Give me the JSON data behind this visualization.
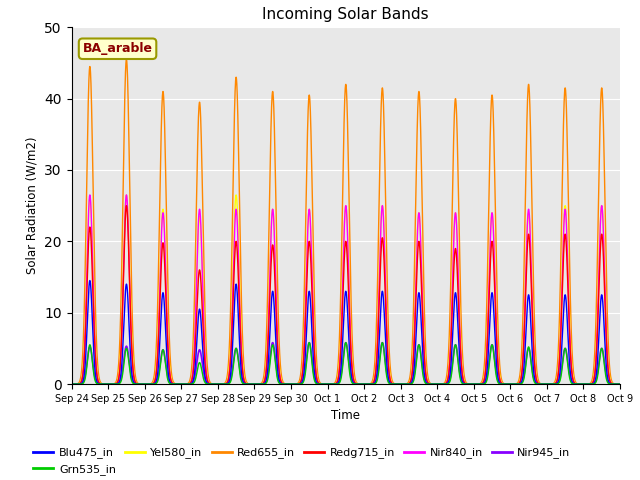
{
  "title": "Incoming Solar Bands",
  "xlabel": "Time",
  "ylabel": "Solar Radiation (W/m2)",
  "ylim": [
    0,
    50
  ],
  "annotation_text": "BA_arable",
  "bg_color": "#e8e8e8",
  "legend_entries": [
    {
      "label": "Blu475_in",
      "color": "#0000ff"
    },
    {
      "label": "Grn535_in",
      "color": "#00cc00"
    },
    {
      "label": "Yel580_in",
      "color": "#ffff00"
    },
    {
      "label": "Red655_in",
      "color": "#ff8800"
    },
    {
      "label": "Redg715_in",
      "color": "#ff0000"
    },
    {
      "label": "Nir840_in",
      "color": "#ff00ff"
    },
    {
      "label": "Nir945_in",
      "color": "#8800ff"
    }
  ],
  "n_days": 15,
  "peaks_blu": [
    14.5,
    14.0,
    12.8,
    10.5,
    14.0,
    13.0,
    13.0,
    13.0,
    13.0,
    12.8,
    12.8,
    12.8,
    12.5,
    12.5,
    12.5
  ],
  "peaks_grn": [
    5.5,
    5.0,
    4.8,
    3.0,
    5.0,
    5.5,
    5.8,
    5.8,
    5.8,
    5.5,
    5.5,
    5.5,
    5.2,
    5.0,
    5.0
  ],
  "peaks_yel": [
    26.0,
    26.5,
    24.5,
    23.5,
    26.5,
    24.5,
    24.5,
    25.0,
    25.0,
    24.0,
    24.0,
    24.0,
    24.0,
    25.0,
    25.0
  ],
  "peaks_red": [
    44.5,
    45.5,
    41.0,
    39.5,
    43.0,
    41.0,
    40.5,
    42.0,
    41.5,
    41.0,
    40.0,
    40.5,
    42.0,
    41.5,
    41.5
  ],
  "peaks_redg": [
    22.0,
    25.0,
    19.8,
    16.0,
    20.0,
    19.5,
    20.0,
    20.0,
    20.5,
    20.0,
    19.0,
    20.0,
    21.0,
    21.0,
    21.0
  ],
  "peaks_nir840": [
    26.5,
    26.5,
    24.0,
    24.5,
    24.5,
    24.5,
    24.5,
    25.0,
    25.0,
    24.0,
    24.0,
    24.0,
    24.5,
    24.5,
    25.0
  ],
  "peaks_nir945": [
    5.2,
    5.3,
    4.8,
    4.8,
    5.0,
    5.8,
    5.8,
    5.8,
    5.8,
    5.5,
    5.5,
    5.5,
    5.0,
    5.0,
    5.0
  ],
  "x_tick_labels": [
    "Sep 24",
    "Sep 25",
    "Sep 26",
    "Sep 27",
    "Sep 28",
    "Sep 29",
    "Sep 30",
    "Oct 1",
    "Oct 2",
    "Oct 3",
    "Oct 4",
    "Oct 5",
    "Oct 6",
    "Oct 7",
    "Oct 8",
    "Oct 9"
  ]
}
